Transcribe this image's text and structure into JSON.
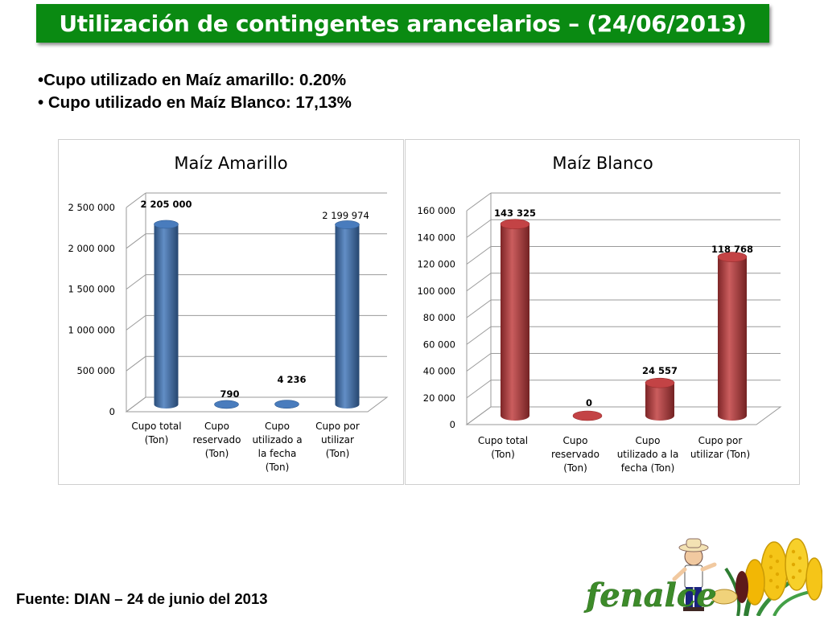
{
  "header": {
    "title": "Utilización de contingentes arancelarios – (24/06/2013)"
  },
  "bullets": [
    "•Cupo utilizado en Maíz amarillo: 0.20%",
    "• Cupo utilizado en Maíz Blanco: 17,13%"
  ],
  "chart_data": [
    {
      "type": "bar",
      "title": "Maíz Amarillo",
      "categories": [
        [
          "Cupo total",
          "(Ton)"
        ],
        [
          "Cupo",
          "reservado",
          "(Ton)"
        ],
        [
          "Cupo",
          "utilizado a",
          "la fecha",
          "(Ton)"
        ],
        [
          "Cupo por",
          "utilizar",
          "(Ton)"
        ]
      ],
      "values": [
        2205000,
        790,
        4236,
        2199974
      ],
      "data_labels": [
        "2 205 000",
        "790",
        "4 236",
        "2 199 974"
      ],
      "label_bold": [
        true,
        true,
        true,
        false
      ],
      "y_ticks": [
        "0",
        "500 000",
        "1 000 000",
        "1 500 000",
        "2 000 000",
        "2 500 000"
      ],
      "ylim": [
        0,
        2500000
      ],
      "color": "#3f75b9",
      "grid": true,
      "legend": false
    },
    {
      "type": "bar",
      "title": "Maíz Blanco",
      "categories": [
        [
          "Cupo total",
          "(Ton)"
        ],
        [
          "Cupo",
          "reservado",
          "(Ton)"
        ],
        [
          "Cupo",
          "utilizado a la",
          "fecha (Ton)"
        ],
        [
          "Cupo por",
          "utilizar (Ton)"
        ]
      ],
      "values": [
        143325,
        0,
        24557,
        118768
      ],
      "data_labels": [
        "143 325",
        "0",
        "24 557",
        "118 768"
      ],
      "label_bold": [
        true,
        true,
        true,
        true
      ],
      "y_ticks": [
        "0",
        "20 000",
        "40 000",
        "60 000",
        "80 000",
        "100 000",
        "120 000",
        "140 000",
        "160 000"
      ],
      "ylim": [
        0,
        160000
      ],
      "color": "#c0393b",
      "grid": true,
      "legend": false
    }
  ],
  "footer": {
    "source": "Fuente: DIAN – 24 de junio del 2013"
  },
  "logo": {
    "text": "fenalce"
  }
}
